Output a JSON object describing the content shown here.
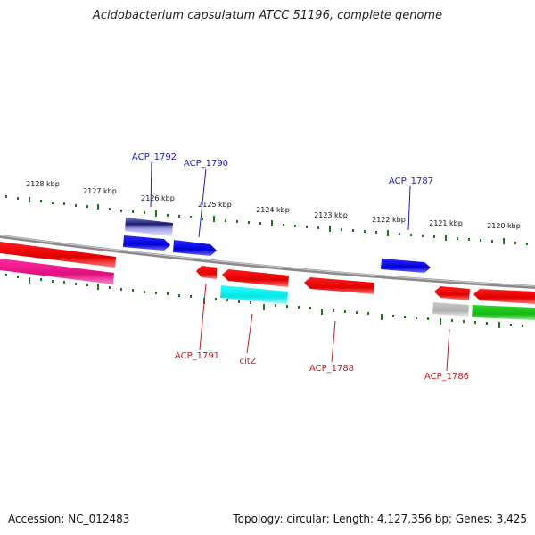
{
  "title": "Acidobacterium capsulatum ATCC 51196, complete genome",
  "footer": {
    "accession": "Accession: NC_012483",
    "summary": "Topology: circular; Length: 4,127,356 bp; Genes: 3,425"
  },
  "colors": {
    "backbone": "#8a8a8a",
    "tick": "#1a7a1a",
    "forward_cds": "#1010e0",
    "reverse_cds": "#e01010",
    "label_top": "#1a1acc",
    "label_bottom": "#cc1a1a"
  },
  "scale": {
    "labels": [
      "2128 kbp",
      "2127 kbp",
      "2126 kbp",
      "2125 kbp",
      "2124 kbp",
      "2123 kbp",
      "2122 kbp",
      "2121 kbp",
      "2120 kbp"
    ]
  },
  "genes": {
    "top": [
      "ACP_1792",
      "ACP_1790",
      "ACP_1787"
    ],
    "bottom": [
      "ACP_1791",
      "citZ",
      "ACP_1788",
      "ACP_1786"
    ]
  }
}
